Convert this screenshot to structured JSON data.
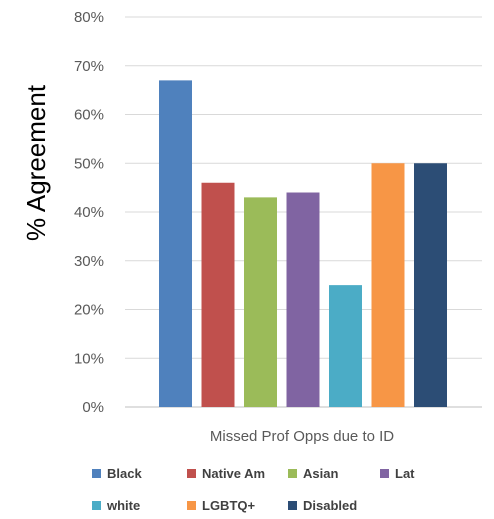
{
  "chart_data": {
    "type": "bar",
    "title": "",
    "ylabel": "% Agreement",
    "xlabel": "",
    "categories": [
      "Missed Prof Opps due to ID"
    ],
    "ylim": [
      0,
      80
    ],
    "yticks": [
      "0%",
      "10%",
      "20%",
      "30%",
      "40%",
      "50%",
      "60%",
      "70%",
      "80%"
    ],
    "grid": true,
    "legend_position": "bottom",
    "series": [
      {
        "name": "Black",
        "values": [
          67
        ],
        "color": "#4f81bd"
      },
      {
        "name": "Native Am",
        "values": [
          46
        ],
        "color": "#c0504d"
      },
      {
        "name": "Asian",
        "values": [
          43
        ],
        "color": "#9bbb59"
      },
      {
        "name": "Lat",
        "values": [
          44
        ],
        "color": "#8064a2"
      },
      {
        "name": "white",
        "values": [
          25
        ],
        "color": "#4bacc6"
      },
      {
        "name": "LGBTQ+",
        "values": [
          50
        ],
        "color": "#f79646"
      },
      {
        "name": "Disabled",
        "values": [
          50
        ],
        "color": "#2c4d75"
      }
    ]
  }
}
